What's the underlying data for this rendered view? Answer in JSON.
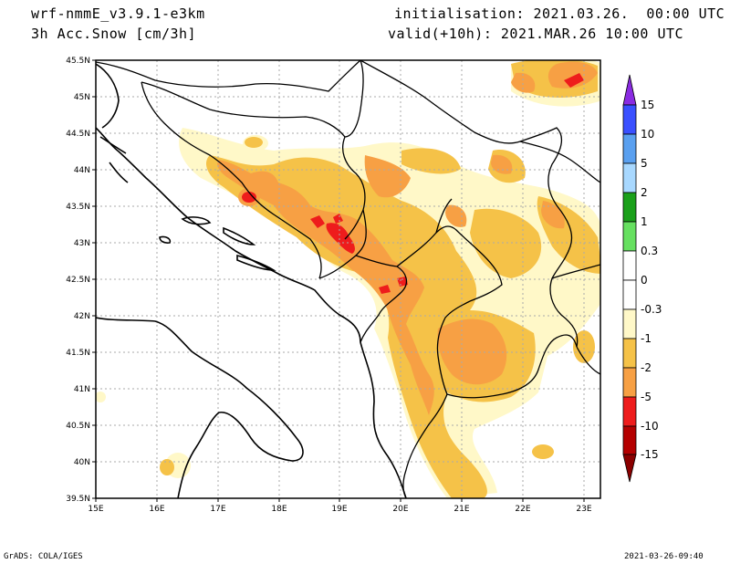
{
  "header": {
    "model": "wrf-nmmE_v3.9.1-e3km",
    "field": "3h Acc.Snow [cm/3h]",
    "init": "initialisation: 2021.03.26.  00:00 UTC",
    "valid": "valid(+10h): 2021.MAR.26 10:00 UTC"
  },
  "footer": {
    "left": "GrADS: COLA/IGES",
    "right": "2021-03-26-09:40"
  },
  "map": {
    "lat_labels": [
      "45.5N",
      "45N",
      "44.5N",
      "44N",
      "43.5N",
      "43N",
      "42.5N",
      "42N",
      "41.5N",
      "41N",
      "40.5N",
      "40N",
      "39.5N"
    ],
    "lon_labels": [
      "15E",
      "16E",
      "17E",
      "18E",
      "19E",
      "20E",
      "21E",
      "22E",
      "23E"
    ],
    "lat_range": [
      39.5,
      45.5
    ],
    "lon_range": [
      15,
      23.3
    ],
    "grid": true,
    "colors": {
      "light": "#fff8c8",
      "yellow": "#f5c248",
      "orange": "#f7a044",
      "red": "#ee1c1c"
    }
  },
  "colorbar": {
    "labels": [
      "15",
      "10",
      "5",
      "2",
      "1",
      "0.3",
      "0",
      "-0.3",
      "-1",
      "-2",
      "-5",
      "-10",
      "-15"
    ],
    "colors": [
      "#6a00ff",
      "#3a50ff",
      "#5aa0f0",
      "#a8d8ff",
      "#1aa01a",
      "#66e060",
      "#ffffff",
      "#ffffff",
      "#fff8c8",
      "#f5c248",
      "#f7a044",
      "#ee1c1c",
      "#b40000"
    ]
  }
}
